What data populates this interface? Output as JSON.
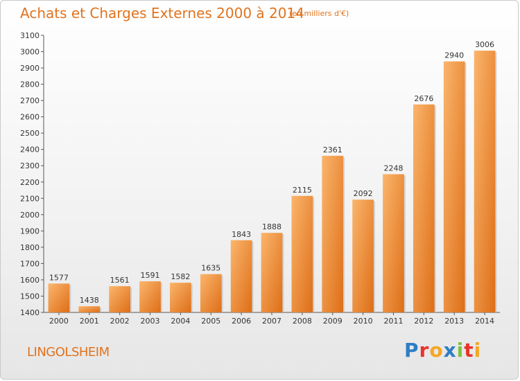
{
  "chart_data": {
    "type": "bar",
    "title": "Achats et Charges Externes 2000 à 2014",
    "subtitle": "(en milliers d'€)",
    "categories": [
      "2000",
      "2001",
      "2002",
      "2003",
      "2004",
      "2005",
      "2006",
      "2007",
      "2008",
      "2009",
      "2010",
      "2011",
      "2012",
      "2013",
      "2014"
    ],
    "values": [
      1577,
      1438,
      1561,
      1591,
      1582,
      1635,
      1843,
      1888,
      2115,
      2361,
      2092,
      2248,
      2676,
      2940,
      3006
    ],
    "ylim": [
      1400,
      3100
    ],
    "yticks": [
      1400,
      1500,
      1600,
      1700,
      1800,
      1900,
      2000,
      2100,
      2200,
      2300,
      2400,
      2500,
      2600,
      2700,
      2800,
      2900,
      3000,
      3100
    ],
    "grid": false,
    "legend": "none",
    "colors": {
      "bar_light": "#f7a65a",
      "bar_dark": "#e07420",
      "accent": "#e0731e"
    }
  },
  "footer": {
    "city": "LINGOLSHEIM",
    "logo_letters": [
      {
        "ch": "P",
        "color": "#2e7dc4"
      },
      {
        "ch": "r",
        "color": "#e8342c"
      },
      {
        "ch": "o",
        "color": "#f5a623"
      },
      {
        "ch": "x",
        "color": "#2e7dc4"
      },
      {
        "ch": "i",
        "color": "#7cc242"
      },
      {
        "ch": "t",
        "color": "#e8342c"
      },
      {
        "ch": "i",
        "color": "#f5a623"
      }
    ]
  }
}
